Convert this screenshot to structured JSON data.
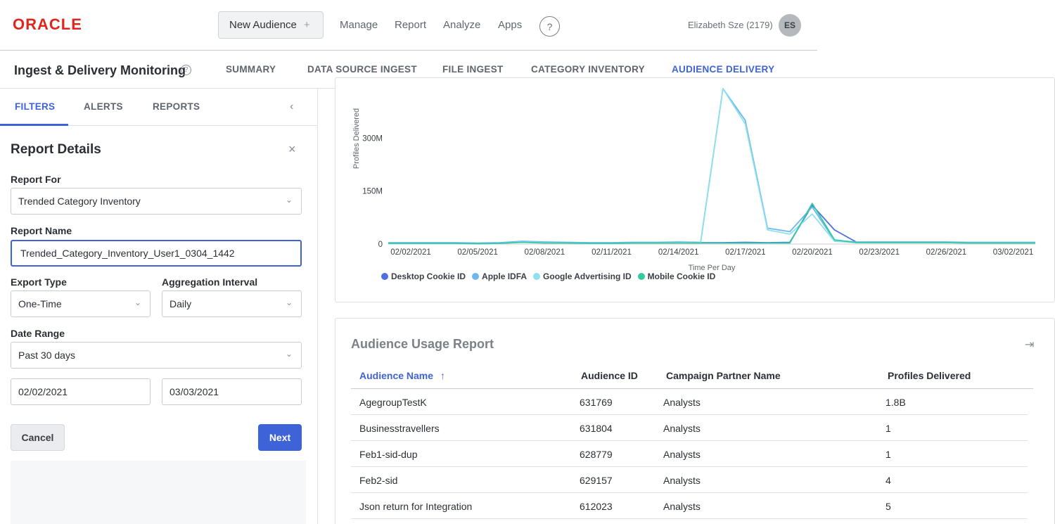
{
  "app": {
    "logo": "ORACLE"
  },
  "topbar": {
    "new_audience": "New Audience",
    "new_audience_plus": "+",
    "nav": [
      "Manage",
      "Report",
      "Analyze",
      "Apps"
    ],
    "help": "?",
    "user_name": "Elizabeth Sze (2179)",
    "user_initials": "ES"
  },
  "page": {
    "title": "Ingest & Delivery Monitoring",
    "title_help": "?",
    "tabs": [
      "SUMMARY",
      "DATA SOURCE INGEST",
      "FILE INGEST",
      "CATEGORY INVENTORY",
      "AUDIENCE DELIVERY"
    ],
    "active_tab": "AUDIENCE DELIVERY"
  },
  "left_panel": {
    "tabs": [
      "FILTERS",
      "ALERTS",
      "REPORTS"
    ],
    "active_tab": "FILTERS",
    "collapse_icon": "‹",
    "report_details": {
      "title": "Report Details",
      "close": "×",
      "report_for_label": "Report For",
      "report_for_value": "Trended Category Inventory",
      "report_name_label": "Report Name",
      "report_name_value": "Trended_Category_Inventory_User1_0304_1442",
      "export_type_label": "Export Type",
      "export_type_value": "One-Time",
      "aggregation_label": "Aggregation Interval",
      "aggregation_value": "Daily",
      "date_range_label": "Date Range",
      "date_range_value": "Past 30 days",
      "start_date": "02/02/2021",
      "end_date": "03/03/2021",
      "cancel": "Cancel",
      "next": "Next"
    }
  },
  "chart_data": {
    "type": "line",
    "ylabel": "Profiles Delivered",
    "xlabel": "Time Per Day",
    "y_ticks": [
      "0",
      "150M",
      "300M"
    ],
    "y_tick_values": [
      0,
      150,
      300
    ],
    "ylim": [
      0,
      440
    ],
    "x_ticks": [
      "02/02/2021",
      "02/05/2021",
      "02/08/2021",
      "02/11/2021",
      "02/14/2021",
      "02/17/2021",
      "02/20/2021",
      "02/23/2021",
      "02/26/2021",
      "03/02/2021"
    ],
    "x_tick_positions": [
      0,
      3,
      6,
      9,
      12,
      15,
      18,
      21,
      24,
      27
    ],
    "x_count": 30,
    "grid": false,
    "legend_position": "bottom-left",
    "series": [
      {
        "name": "Desktop Cookie ID",
        "color": "#4f6fe0",
        "values": [
          3,
          3,
          3,
          3,
          2,
          3,
          7,
          5,
          4,
          3,
          3,
          4,
          4,
          5,
          4,
          4,
          5,
          4,
          5,
          110,
          40,
          5,
          5,
          5,
          5,
          5,
          4,
          4,
          4,
          4
        ]
      },
      {
        "name": "Apple IDFA",
        "color": "#6bb7ee",
        "values": [
          4,
          4,
          4,
          4,
          3,
          4,
          8,
          6,
          5,
          4,
          4,
          5,
          5,
          6,
          5,
          500,
          350,
          45,
          35,
          105,
          10,
          6,
          6,
          6,
          6,
          6,
          5,
          5,
          5,
          5
        ]
      },
      {
        "name": "Google Advertising ID",
        "color": "#8fe0ee",
        "values": [
          2,
          2,
          2,
          2,
          1,
          2,
          6,
          4,
          3,
          2,
          2,
          3,
          3,
          4,
          3,
          490,
          340,
          40,
          28,
          85,
          8,
          4,
          4,
          4,
          4,
          4,
          3,
          3,
          3,
          3
        ]
      },
      {
        "name": "Mobile Cookie ID",
        "color": "#35c9a2",
        "values": [
          2,
          2,
          2,
          2,
          1,
          2,
          5,
          3,
          3,
          2,
          2,
          3,
          3,
          3,
          3,
          3,
          3,
          3,
          3,
          115,
          12,
          4,
          4,
          4,
          4,
          4,
          3,
          3,
          3,
          3
        ]
      }
    ]
  },
  "usage_report": {
    "title": "Audience Usage Report",
    "export_icon": "⇥",
    "columns": [
      "Audience Name",
      "Audience ID",
      "Campaign Partner Name",
      "Profiles Delivered"
    ],
    "sort_arrow": "↑",
    "rows": [
      [
        "AgegroupTestK",
        "631769",
        "Analysts",
        "1.8B"
      ],
      [
        "Businesstravellers",
        "631804",
        "Analysts",
        "1"
      ],
      [
        "Feb1-sid-dup",
        "628779",
        "Analysts",
        "1"
      ],
      [
        "Feb2-sid",
        "629157",
        "Analysts",
        "4"
      ],
      [
        "Json return for Integration",
        "612023",
        "Analysts",
        "5"
      ]
    ]
  }
}
